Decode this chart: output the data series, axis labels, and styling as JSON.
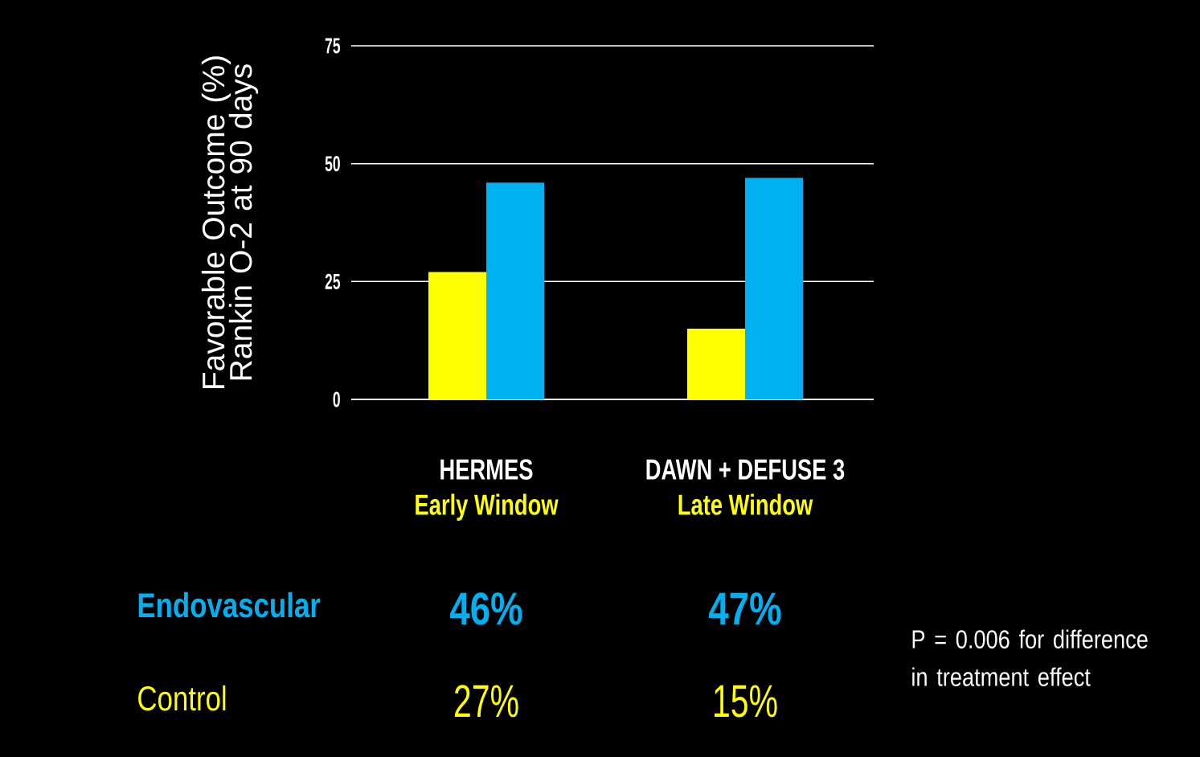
{
  "chart_data": {
    "type": "bar",
    "ylabel": "Favorable Outcome (%) Rankin O-2 at 90 days",
    "categories": [
      "HERMES",
      "DAWN + DEFUSE 3"
    ],
    "series": [
      {
        "name": "Control",
        "color": "#ffff00",
        "values": [
          27,
          15
        ],
        "value_labels": [
          "27%",
          "15%"
        ]
      },
      {
        "name": "Endovascular",
        "color": "#00b0f0",
        "values": [
          46,
          47
        ],
        "value_labels": [
          "46%",
          "47%"
        ]
      }
    ],
    "ylim": [
      0,
      75
    ],
    "yticks": [
      0,
      25,
      50,
      75
    ],
    "grid": "y",
    "annotations": [
      "Early Window",
      "Late Window",
      "P = 0.006 for difference in treatment effect"
    ]
  }
}
